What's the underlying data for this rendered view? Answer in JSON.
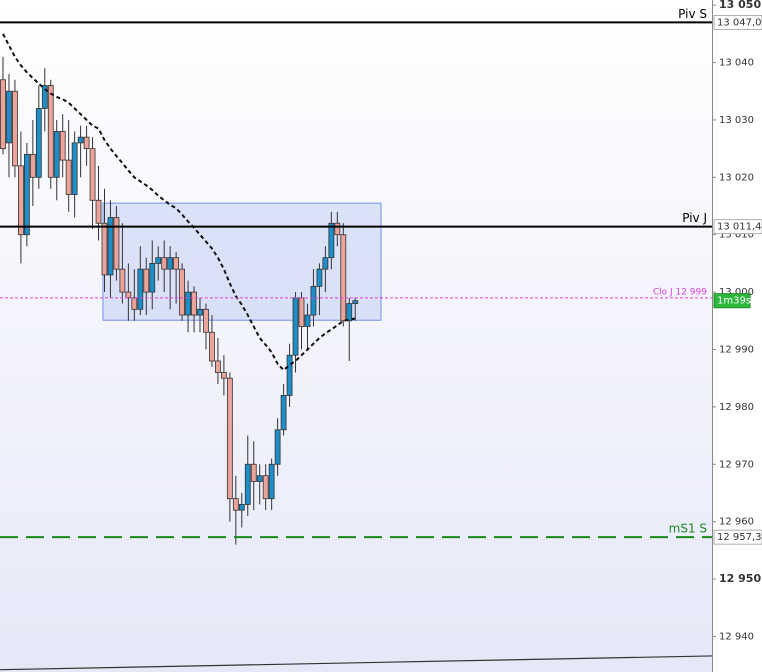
{
  "chart_data": {
    "type": "candlestick",
    "categories": [
      null,
      null,
      null,
      null,
      null,
      null,
      null,
      null,
      null,
      null,
      null,
      null,
      null,
      null,
      null,
      null,
      null,
      null,
      null,
      null,
      null,
      null,
      null,
      null,
      null,
      null,
      null,
      null,
      null,
      null,
      null,
      null,
      null,
      null,
      null,
      null,
      null,
      null,
      null,
      null,
      null,
      null,
      null,
      null,
      null,
      null,
      null,
      null,
      null,
      null,
      null,
      null,
      null,
      null,
      null,
      null,
      null,
      null,
      null,
      null
    ],
    "open": [
      13037,
      13026,
      13035,
      13022,
      13010,
      13024,
      13020,
      13032,
      13036,
      13020,
      13028,
      13023,
      13017,
      13026,
      13027,
      13025,
      13016,
      13012,
      13003,
      13013,
      13004,
      13000,
      12999,
      12997,
      13004,
      13000,
      13005,
      13006,
      13004,
      13006,
      13004,
      12996,
      13000,
      12996,
      12997,
      12993,
      12988,
      12986,
      12985,
      12964,
      12962,
      12963,
      12970,
      12967,
      12968,
      12964,
      12970,
      12976,
      12982,
      12989,
      12999,
      12994,
      12996,
      13001,
      13004,
      13006,
      13012,
      13010,
      12995,
      12998
    ],
    "high": [
      13041,
      13038,
      13037,
      13028,
      13026,
      13030,
      13036,
      13039,
      13037,
      13030,
      13031,
      13030,
      13028,
      13029,
      13029,
      13027,
      13022,
      13018,
      13016,
      13015,
      13012,
      13005,
      13004,
      13008,
      13006,
      13009,
      13008,
      13009,
      13008,
      13007,
      13005,
      13002,
      13001,
      12999,
      12998,
      12996,
      12992,
      12989,
      12986,
      12968,
      12965,
      12975,
      12974,
      12970,
      12970,
      12971,
      12978,
      12984,
      12991,
      13000,
      13000,
      12998,
      13004,
      13005,
      13008,
      13014,
      13014,
      13012,
      12999,
      12999
    ],
    "low": [
      13024,
      13020,
      13020,
      13005,
      13008,
      13015,
      13018,
      13028,
      13018,
      13016,
      13020,
      13014,
      13013,
      13020,
      13022,
      13011,
      13009,
      13000,
      12999,
      13002,
      12998,
      12995,
      12995,
      12996,
      12996,
      12997,
      13002,
      13000,
      12997,
      12998,
      12995,
      12993,
      12993,
      12993,
      12990,
      12987,
      12984,
      12982,
      12960,
      12956,
      12959,
      12961,
      12962,
      12963,
      12962,
      12962,
      12968,
      12975,
      12980,
      12986,
      12990,
      12990,
      12994,
      12996,
      13000,
      13004,
      13008,
      12994,
      12988,
      12995
    ],
    "close": [
      13025,
      13035,
      13022,
      13010,
      13024,
      13020,
      13032,
      13036,
      13020,
      13028,
      13023,
      13017,
      13026,
      13027,
      13025,
      13016,
      13012,
      13003,
      13013,
      13004,
      13000,
      12999,
      12997,
      13004,
      13000,
      13005,
      13006,
      13004,
      13006,
      13004,
      12996,
      13000,
      12996,
      12997,
      12993,
      12988,
      12986,
      12985,
      12964,
      12962,
      12963,
      12970,
      12967,
      12968,
      12964,
      12970,
      12976,
      12982,
      12989,
      12999,
      12994,
      12996,
      13001,
      13004,
      13006,
      13012,
      13010,
      12995,
      12998,
      12998.5
    ],
    "up_color": "#1e8ec8",
    "down_color": "#eba39a",
    "ma": {
      "color": "#111111",
      "values": [
        13045,
        13043,
        13041,
        13039.5,
        13038.3,
        13037.3,
        13036.3,
        13035.4,
        13034.6,
        13034,
        13033.6,
        13033,
        13032,
        13031,
        13030,
        13029,
        13028.5,
        13026.5,
        13025,
        13023.7,
        13022.5,
        13021.2,
        13020,
        13019.3,
        13018.6,
        13017.8,
        13016.8,
        13016,
        13015.2,
        13014.6,
        13013.5,
        13012.3,
        13011.2,
        13010,
        13008.8,
        13007.6,
        13006,
        13004,
        13001.5,
        12999.3,
        12997.8,
        12996,
        12994,
        12992,
        12990.8,
        12989.5,
        12987.5,
        12986.4,
        12987.3,
        12988,
        12989,
        12990,
        12991,
        12992,
        12992.8,
        12993.5,
        12994.2,
        12995,
        12995.2,
        12995.4
      ]
    },
    "trendline": {
      "color": "#333333",
      "values": [
        12934.2,
        12936.6
      ]
    },
    "zone": {
      "high": 13015.5,
      "low": 12995.1,
      "color": "#6f93e8"
    },
    "levels": [
      {
        "name": "Piv S",
        "value": 13047.0,
        "value_label": "13 047,0",
        "color": "#000000",
        "style": "solid"
      },
      {
        "name": "Piv J",
        "value": 13011.4,
        "value_label": "13 011,4",
        "color": "#000000",
        "style": "solid"
      },
      {
        "name": "Clo J 12 999",
        "value": 12999,
        "color": "#e040e0",
        "style": "dotted"
      },
      {
        "name": "mS1 S",
        "value": 12957.3,
        "value_label": "12 957,3",
        "color": "#1a8a1a",
        "style": "dashed"
      }
    ],
    "countdown": "1m39s",
    "ylim": [
      12933.8,
      13050.9
    ],
    "yticks": [
      {
        "value": 13050,
        "label": "13 050"
      },
      {
        "value": 13040,
        "label": "13 040"
      },
      {
        "value": 13030,
        "label": "13 030"
      },
      {
        "value": 13020,
        "label": "13 020"
      },
      {
        "value": 13010,
        "label": "13 010"
      },
      {
        "value": 13000,
        "label": "13 000"
      },
      {
        "value": 12990,
        "label": "12 990"
      },
      {
        "value": 12980,
        "label": "12 980"
      },
      {
        "value": 12970,
        "label": "12 970"
      },
      {
        "value": 12960,
        "label": "12 960"
      },
      {
        "value": 12950,
        "label": "12 950"
      },
      {
        "value": 12940,
        "label": "12 940"
      }
    ]
  }
}
